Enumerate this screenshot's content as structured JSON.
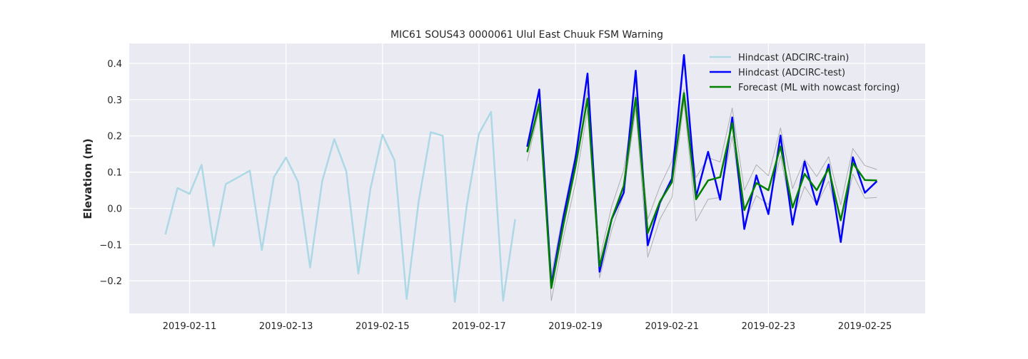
{
  "chart_data": {
    "type": "line",
    "title": "MIC61 SOUS43 0000061 Ulul East Chuuk FSM Warning",
    "xlabel": "",
    "ylabel": "Elevation (m)",
    "xlim": [
      "2019-02-09T18:00",
      "2019-02-26T06:00"
    ],
    "ylim": [
      -0.29,
      0.455
    ],
    "x_ticks": [
      "2019-02-11",
      "2019-02-13",
      "2019-02-15",
      "2019-02-17",
      "2019-02-19",
      "2019-02-21",
      "2019-02-23",
      "2019-02-25"
    ],
    "y_ticks": [
      -0.2,
      -0.1,
      0.0,
      0.1,
      0.2,
      0.3,
      0.4
    ],
    "y_tick_labels": [
      "−0.2",
      "−0.1",
      "0.0",
      "0.1",
      "0.2",
      "0.3",
      "0.4"
    ],
    "grid": true,
    "legend_position": "top-right",
    "background": "#eaeaf2",
    "series": [
      {
        "name": "Hindcast (ADCIRC-train)",
        "color": "#add8e6",
        "points": [
          [
            "2019-02-10T12:00",
            -0.072
          ],
          [
            "2019-02-10T18:00",
            0.056
          ],
          [
            "2019-02-11T00:00",
            0.04
          ],
          [
            "2019-02-11T06:00",
            0.12
          ],
          [
            "2019-02-11T12:00",
            -0.104
          ],
          [
            "2019-02-11T18:00",
            0.067
          ],
          [
            "2019-02-12T00:00",
            0.085
          ],
          [
            "2019-02-12T06:00",
            0.104
          ],
          [
            "2019-02-12T12:00",
            -0.115
          ],
          [
            "2019-02-12T18:00",
            0.086
          ],
          [
            "2019-02-13T00:00",
            0.14
          ],
          [
            "2019-02-13T06:00",
            0.073
          ],
          [
            "2019-02-13T12:00",
            -0.163
          ],
          [
            "2019-02-13T18:00",
            0.075
          ],
          [
            "2019-02-14T00:00",
            0.191
          ],
          [
            "2019-02-14T06:00",
            0.102
          ],
          [
            "2019-02-14T12:00",
            -0.18
          ],
          [
            "2019-02-14T18:00",
            0.054
          ],
          [
            "2019-02-15T00:00",
            0.203
          ],
          [
            "2019-02-15T06:00",
            0.132
          ],
          [
            "2019-02-15T12:00",
            -0.25
          ],
          [
            "2019-02-15T18:00",
            0.02
          ],
          [
            "2019-02-16T00:00",
            0.21
          ],
          [
            "2019-02-16T06:00",
            0.2
          ],
          [
            "2019-02-16T12:00",
            -0.258
          ],
          [
            "2019-02-16T18:00",
            0.01
          ],
          [
            "2019-02-17T00:00",
            0.206
          ],
          [
            "2019-02-17T06:00",
            0.266
          ],
          [
            "2019-02-17T12:00",
            -0.255
          ],
          [
            "2019-02-17T18:00",
            -0.03
          ]
        ]
      },
      {
        "name": "Hindcast (ADCIRC-test)",
        "color": "#0000ff",
        "points": [
          [
            "2019-02-18T00:00",
            0.17
          ],
          [
            "2019-02-18T06:00",
            0.328
          ],
          [
            "2019-02-18T12:00",
            -0.21
          ],
          [
            "2019-02-18T18:00",
            -0.025
          ],
          [
            "2019-02-19T00:00",
            0.138
          ],
          [
            "2019-02-19T06:00",
            0.372
          ],
          [
            "2019-02-19T12:00",
            -0.175
          ],
          [
            "2019-02-19T18:00",
            -0.03
          ],
          [
            "2019-02-20T00:00",
            0.043
          ],
          [
            "2019-02-20T06:00",
            0.38
          ],
          [
            "2019-02-20T12:00",
            -0.102
          ],
          [
            "2019-02-20T18:00",
            0.015
          ],
          [
            "2019-02-21T00:00",
            0.082
          ],
          [
            "2019-02-21T06:00",
            0.423
          ],
          [
            "2019-02-21T12:00",
            0.032
          ],
          [
            "2019-02-21T18:00",
            0.156
          ],
          [
            "2019-02-22T00:00",
            0.024
          ],
          [
            "2019-02-22T06:00",
            0.251
          ],
          [
            "2019-02-22T12:00",
            -0.057
          ],
          [
            "2019-02-22T18:00",
            0.091
          ],
          [
            "2019-02-23T00:00",
            -0.016
          ],
          [
            "2019-02-23T06:00",
            0.201
          ],
          [
            "2019-02-23T12:00",
            -0.045
          ],
          [
            "2019-02-23T18:00",
            0.129
          ],
          [
            "2019-02-24T00:00",
            0.01
          ],
          [
            "2019-02-24T06:00",
            0.121
          ],
          [
            "2019-02-24T12:00",
            -0.093
          ],
          [
            "2019-02-24T18:00",
            0.141
          ],
          [
            "2019-02-25T00:00",
            0.043
          ],
          [
            "2019-02-25T06:00",
            0.075
          ]
        ]
      },
      {
        "name": "Forecast (ML with nowcast forcing)",
        "color": "#008000",
        "points": [
          [
            "2019-02-18T00:00",
            0.155
          ],
          [
            "2019-02-18T06:00",
            0.288
          ],
          [
            "2019-02-18T12:00",
            -0.22
          ],
          [
            "2019-02-18T18:00",
            -0.045
          ],
          [
            "2019-02-19T00:00",
            0.115
          ],
          [
            "2019-02-19T06:00",
            0.303
          ],
          [
            "2019-02-19T12:00",
            -0.16
          ],
          [
            "2019-02-19T18:00",
            -0.03
          ],
          [
            "2019-02-20T00:00",
            0.062
          ],
          [
            "2019-02-20T06:00",
            0.305
          ],
          [
            "2019-02-20T12:00",
            -0.068
          ],
          [
            "2019-02-20T18:00",
            0.018
          ],
          [
            "2019-02-21T00:00",
            0.072
          ],
          [
            "2019-02-21T06:00",
            0.318
          ],
          [
            "2019-02-21T12:00",
            0.025
          ],
          [
            "2019-02-21T18:00",
            0.077
          ],
          [
            "2019-02-22T00:00",
            0.086
          ],
          [
            "2019-02-22T06:00",
            0.235
          ],
          [
            "2019-02-22T12:00",
            -0.005
          ],
          [
            "2019-02-22T18:00",
            0.07
          ],
          [
            "2019-02-23T00:00",
            0.05
          ],
          [
            "2019-02-23T06:00",
            0.171
          ],
          [
            "2019-02-23T12:00",
            0.002
          ],
          [
            "2019-02-23T18:00",
            0.095
          ],
          [
            "2019-02-24T00:00",
            0.05
          ],
          [
            "2019-02-24T06:00",
            0.11
          ],
          [
            "2019-02-24T12:00",
            -0.033
          ],
          [
            "2019-02-24T18:00",
            0.125
          ],
          [
            "2019-02-25T00:00",
            0.078
          ],
          [
            "2019-02-25T06:00",
            0.077
          ]
        ]
      }
    ],
    "bands": [
      {
        "color": "#999999",
        "points": [
          [
            "2019-02-18T00:00",
            0.13
          ],
          [
            "2019-02-18T06:00",
            0.275
          ],
          [
            "2019-02-18T12:00",
            -0.255
          ],
          [
            "2019-02-18T18:00",
            -0.08
          ],
          [
            "2019-02-19T00:00",
            0.07
          ],
          [
            "2019-02-19T06:00",
            0.272
          ],
          [
            "2019-02-19T12:00",
            -0.192
          ],
          [
            "2019-02-19T18:00",
            -0.06
          ],
          [
            "2019-02-20T00:00",
            0.04
          ],
          [
            "2019-02-20T06:00",
            0.275
          ],
          [
            "2019-02-20T12:00",
            -0.135
          ],
          [
            "2019-02-20T18:00",
            -0.03
          ],
          [
            "2019-02-21T00:00",
            0.03
          ],
          [
            "2019-02-21T06:00",
            0.295
          ],
          [
            "2019-02-21T12:00",
            -0.035
          ],
          [
            "2019-02-21T18:00",
            0.025
          ],
          [
            "2019-02-22T00:00",
            0.03
          ],
          [
            "2019-02-22T06:00",
            0.2
          ],
          [
            "2019-02-22T12:00",
            -0.04
          ],
          [
            "2019-02-22T18:00",
            0.035
          ],
          [
            "2019-02-23T00:00",
            0.01
          ],
          [
            "2019-02-23T06:00",
            0.145
          ],
          [
            "2019-02-23T12:00",
            -0.03
          ],
          [
            "2019-02-23T18:00",
            0.06
          ],
          [
            "2019-02-24T00:00",
            0.01
          ],
          [
            "2019-02-24T06:00",
            0.075
          ],
          [
            "2019-02-24T12:00",
            -0.065
          ],
          [
            "2019-02-24T18:00",
            0.095
          ],
          [
            "2019-02-25T00:00",
            0.028
          ],
          [
            "2019-02-25T06:00",
            0.03
          ]
        ]
      },
      {
        "color": "#999999",
        "points": [
          [
            "2019-02-18T00:00",
            0.18
          ],
          [
            "2019-02-18T06:00",
            0.3
          ],
          [
            "2019-02-18T12:00",
            -0.185
          ],
          [
            "2019-02-18T18:00",
            -0.01
          ],
          [
            "2019-02-19T00:00",
            0.15
          ],
          [
            "2019-02-19T06:00",
            0.325
          ],
          [
            "2019-02-19T12:00",
            -0.14
          ],
          [
            "2019-02-19T18:00",
            0.005
          ],
          [
            "2019-02-20T00:00",
            0.105
          ],
          [
            "2019-02-20T06:00",
            0.315
          ],
          [
            "2019-02-20T12:00",
            -0.03
          ],
          [
            "2019-02-20T18:00",
            0.06
          ],
          [
            "2019-02-21T00:00",
            0.13
          ],
          [
            "2019-02-21T06:00",
            0.328
          ],
          [
            "2019-02-21T12:00",
            0.085
          ],
          [
            "2019-02-21T18:00",
            0.14
          ],
          [
            "2019-02-22T00:00",
            0.128
          ],
          [
            "2019-02-22T06:00",
            0.277
          ],
          [
            "2019-02-22T12:00",
            0.05
          ],
          [
            "2019-02-22T18:00",
            0.12
          ],
          [
            "2019-02-23T00:00",
            0.09
          ],
          [
            "2019-02-23T06:00",
            0.222
          ],
          [
            "2019-02-23T12:00",
            0.055
          ],
          [
            "2019-02-23T18:00",
            0.135
          ],
          [
            "2019-02-24T00:00",
            0.088
          ],
          [
            "2019-02-24T06:00",
            0.142
          ],
          [
            "2019-02-24T12:00",
            0.01
          ],
          [
            "2019-02-24T18:00",
            0.165
          ],
          [
            "2019-02-25T00:00",
            0.118
          ],
          [
            "2019-02-25T06:00",
            0.107
          ]
        ]
      }
    ]
  }
}
